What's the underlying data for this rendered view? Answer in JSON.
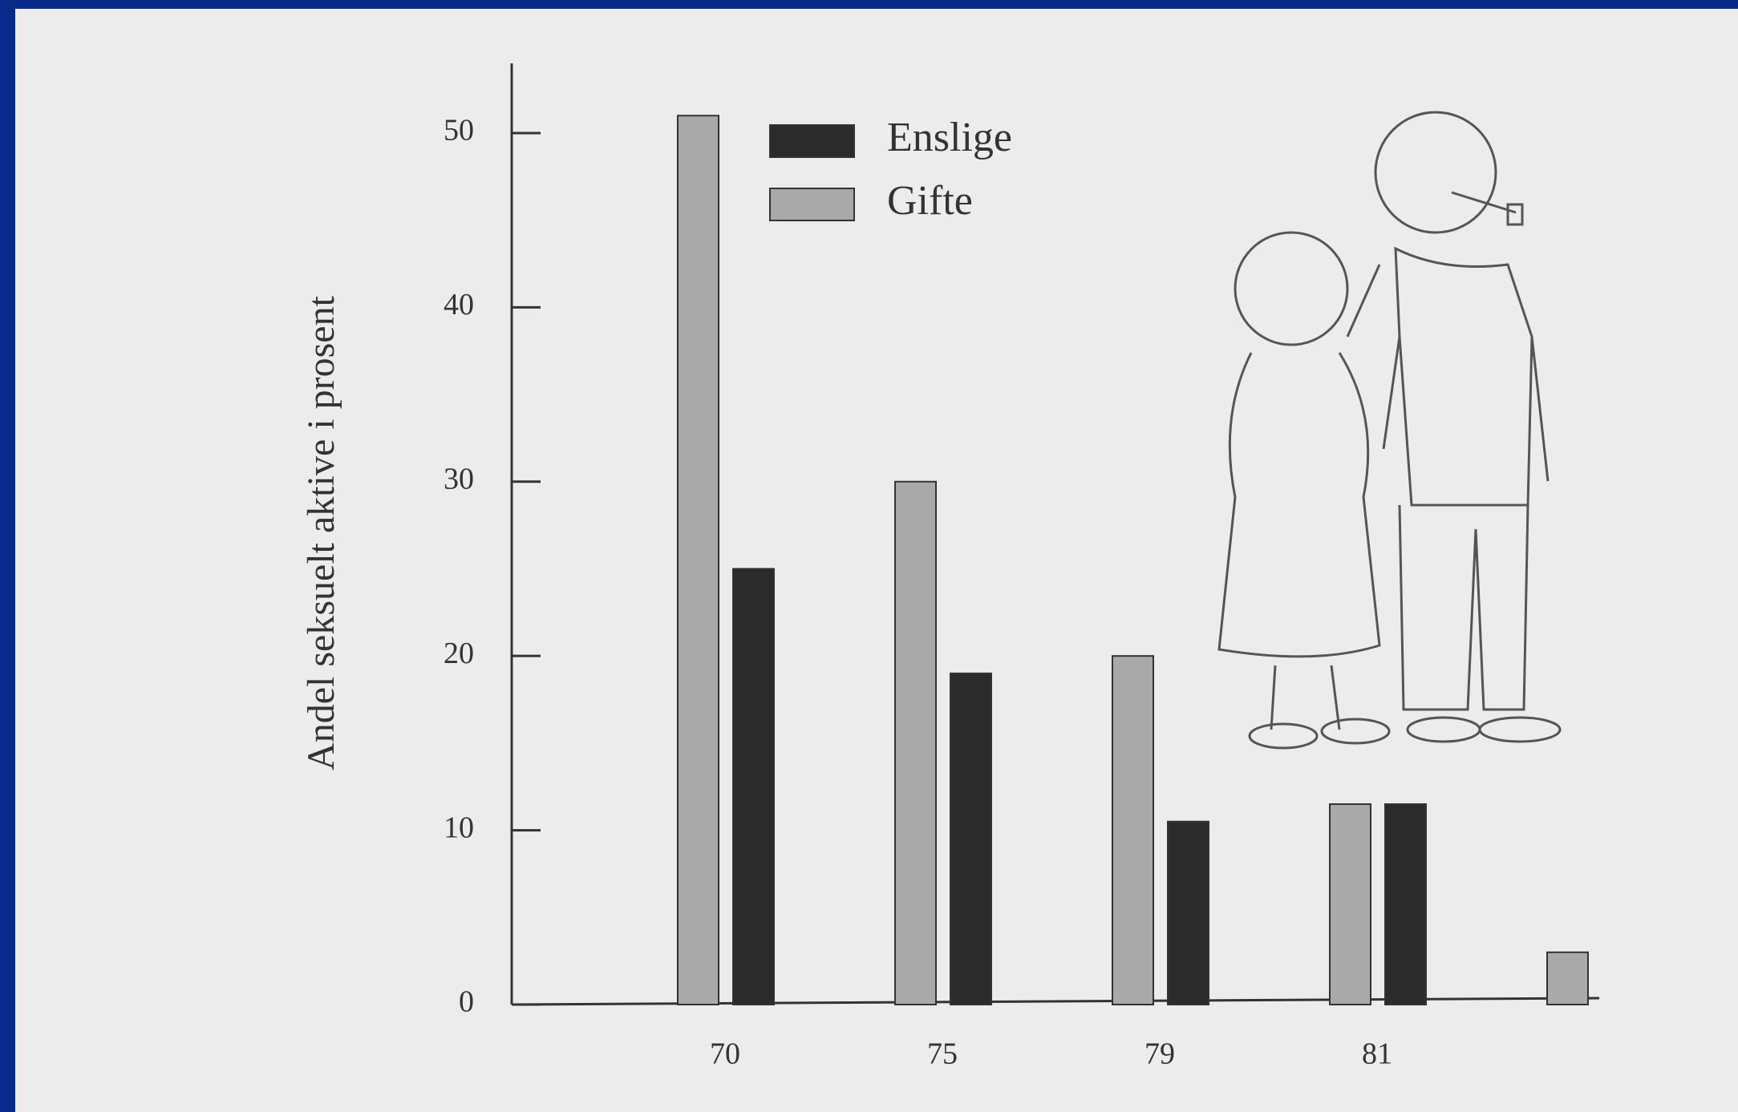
{
  "chart_data": {
    "type": "bar",
    "y_label": "Andel seksuelt aktive i prosent",
    "categories": [
      "70",
      "75",
      "79",
      "81",
      null
    ],
    "series": [
      {
        "name": "Enslige",
        "color": "#2b2b2b",
        "values": [
          25,
          19,
          10.5,
          11.5,
          null
        ]
      },
      {
        "name": "Gifte",
        "color": "#a9a9a9",
        "values": [
          51,
          30,
          20,
          11.5,
          3
        ]
      }
    ],
    "ylim": [
      0,
      54
    ],
    "yticks": [
      0,
      10,
      20,
      30,
      40,
      50
    ],
    "grid": false
  }
}
